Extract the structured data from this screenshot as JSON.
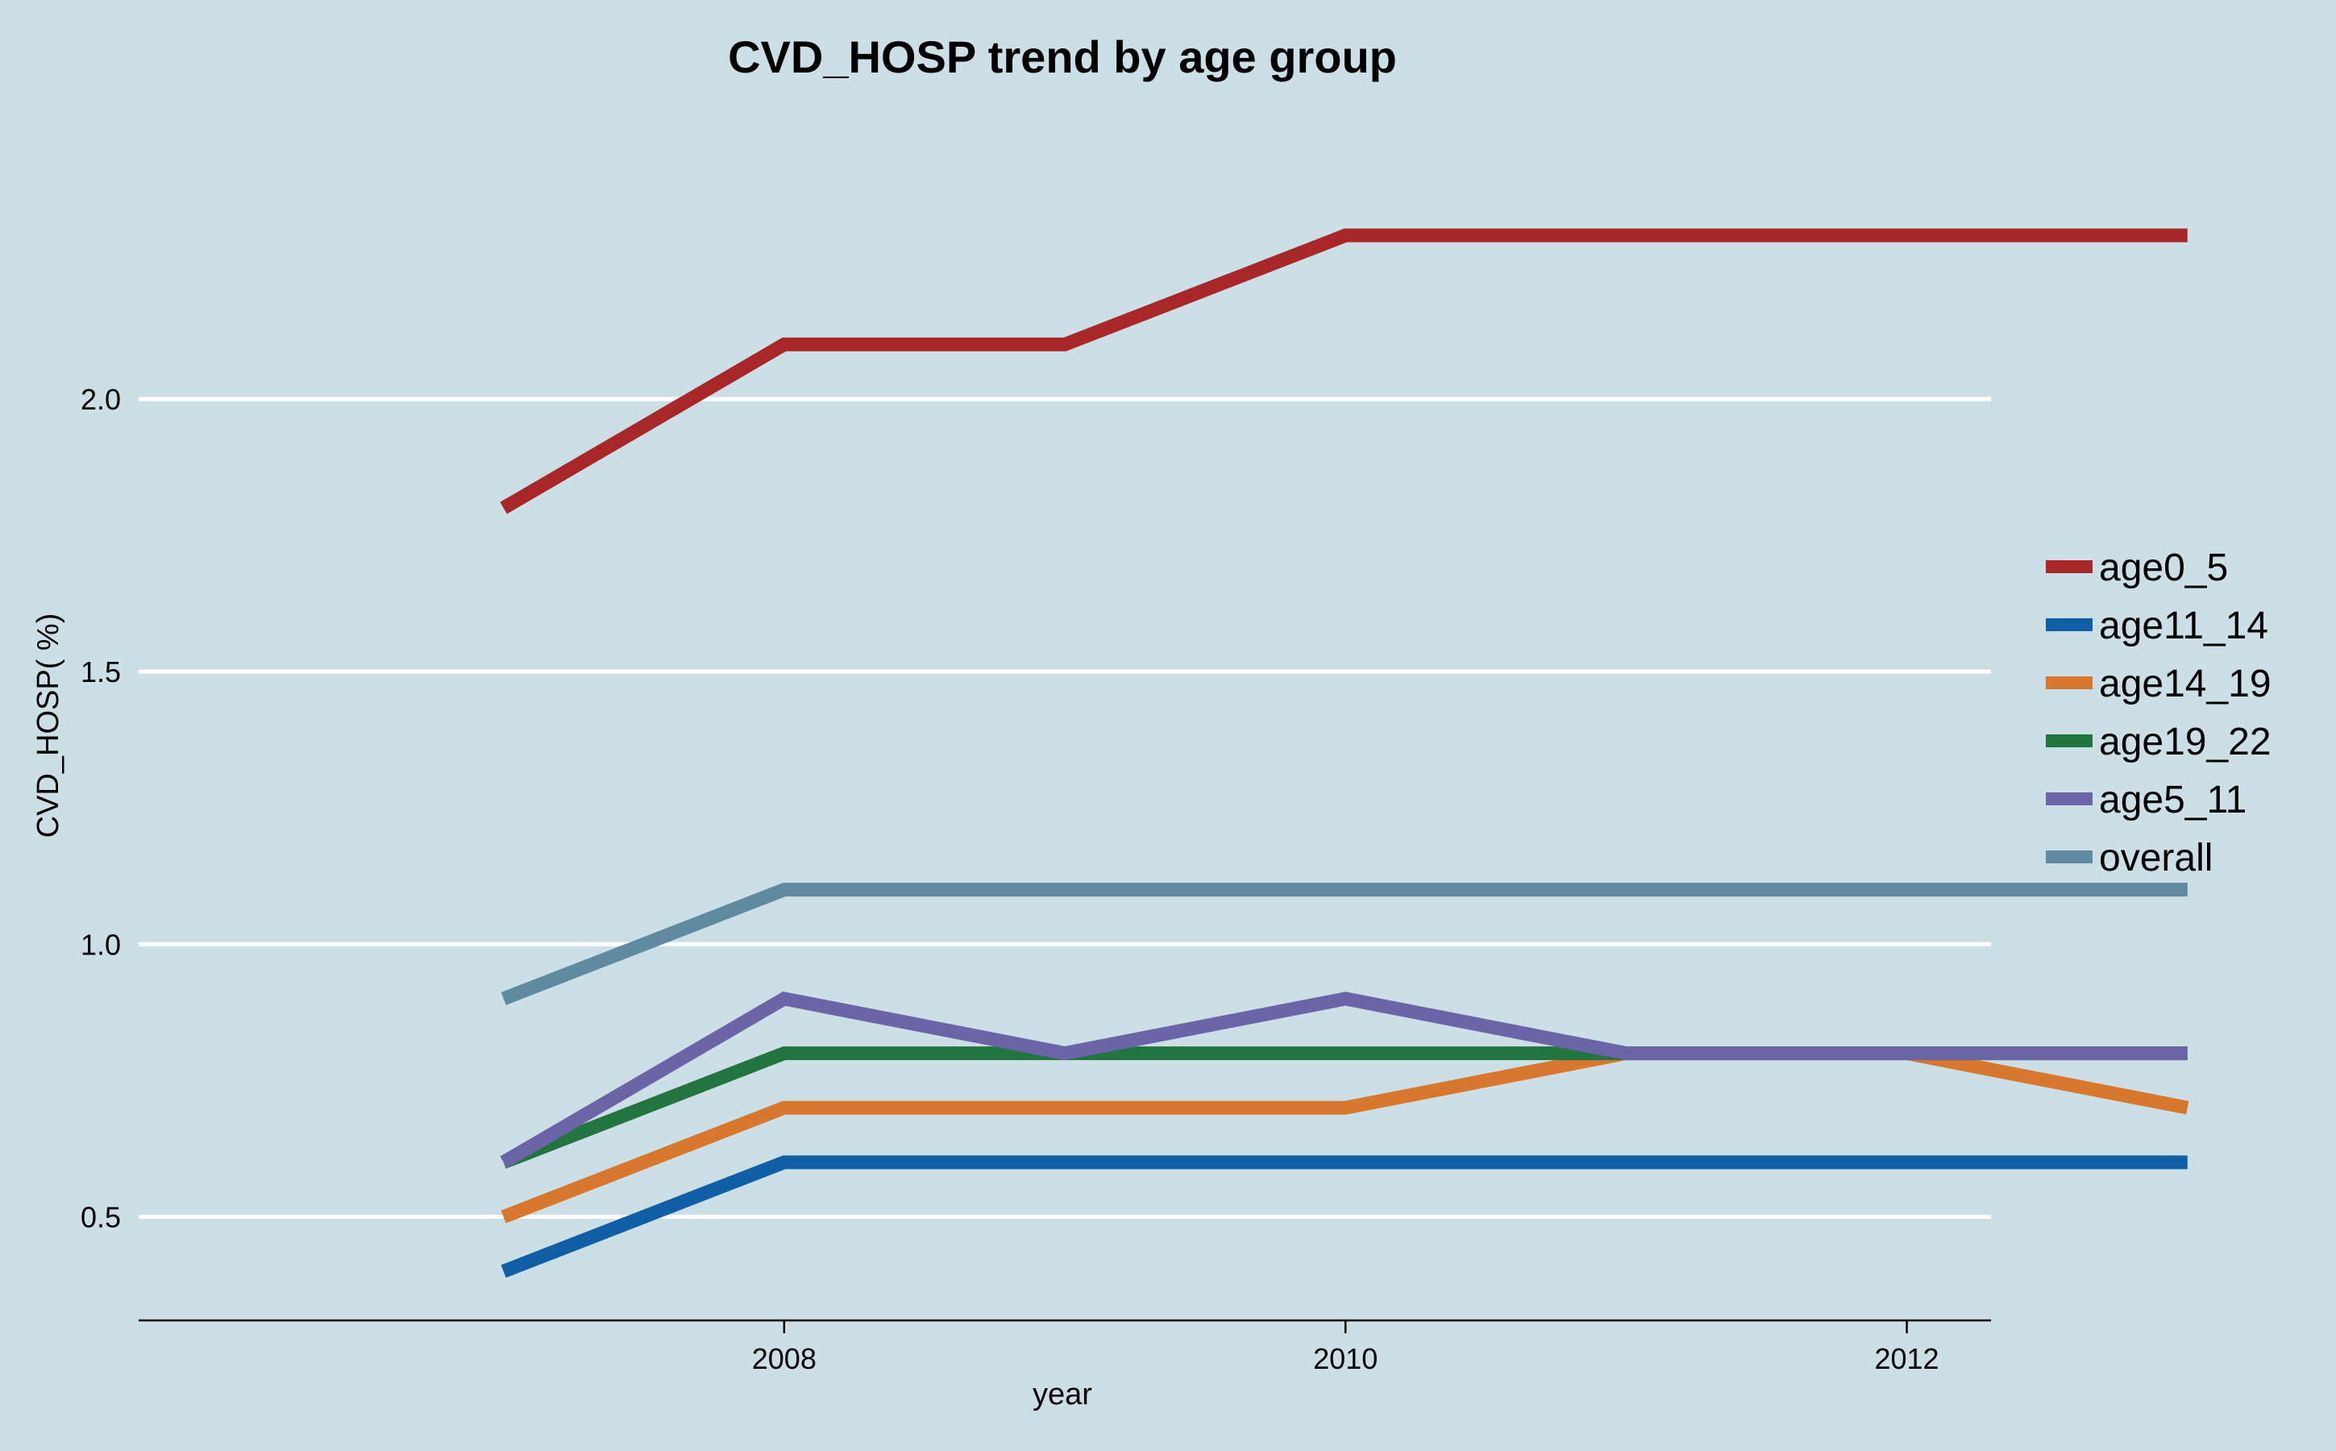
{
  "chart_data": {
    "type": "line",
    "title": "CVD_HOSP trend by age group",
    "xlabel": "year",
    "ylabel": "CVD_HOSP( %)",
    "x": [
      2007,
      2008,
      2009,
      2010,
      2011,
      2012,
      2013
    ],
    "xticks": [
      2008,
      2010,
      2012
    ],
    "yticks": [
      0.5,
      1.0,
      1.5,
      2.0
    ],
    "ytick_labels": [
      "0.5",
      "1.0",
      "1.5",
      "2.0"
    ],
    "xlim": [
      2005.7,
      2012.3
    ],
    "ylim": [
      0.31,
      2.51
    ],
    "grid": "horizontal",
    "legend_position": "right",
    "series": [
      {
        "name": "age0_5",
        "color": "#a8282a",
        "values": [
          1.8,
          2.1,
          2.1,
          2.3,
          2.3,
          2.3,
          2.3
        ]
      },
      {
        "name": "age11_14",
        "color": "#0f5ea6",
        "values": [
          0.4,
          0.6,
          0.6,
          0.6,
          0.6,
          0.6,
          0.6
        ]
      },
      {
        "name": "age14_19",
        "color": "#d8782e",
        "values": [
          0.5,
          0.7,
          0.7,
          0.7,
          0.8,
          0.8,
          0.7
        ]
      },
      {
        "name": "age19_22",
        "color": "#237441",
        "values": [
          0.6,
          0.8,
          0.8,
          0.8,
          0.8,
          0.8,
          0.8
        ]
      },
      {
        "name": "age5_11",
        "color": "#6b65a8",
        "values": [
          0.6,
          0.9,
          0.8,
          0.9,
          0.8,
          0.8,
          0.8
        ]
      },
      {
        "name": "overall",
        "color": "#5f8aa0",
        "values": [
          0.9,
          1.1,
          1.1,
          1.1,
          1.1,
          1.1,
          1.1
        ]
      }
    ]
  }
}
